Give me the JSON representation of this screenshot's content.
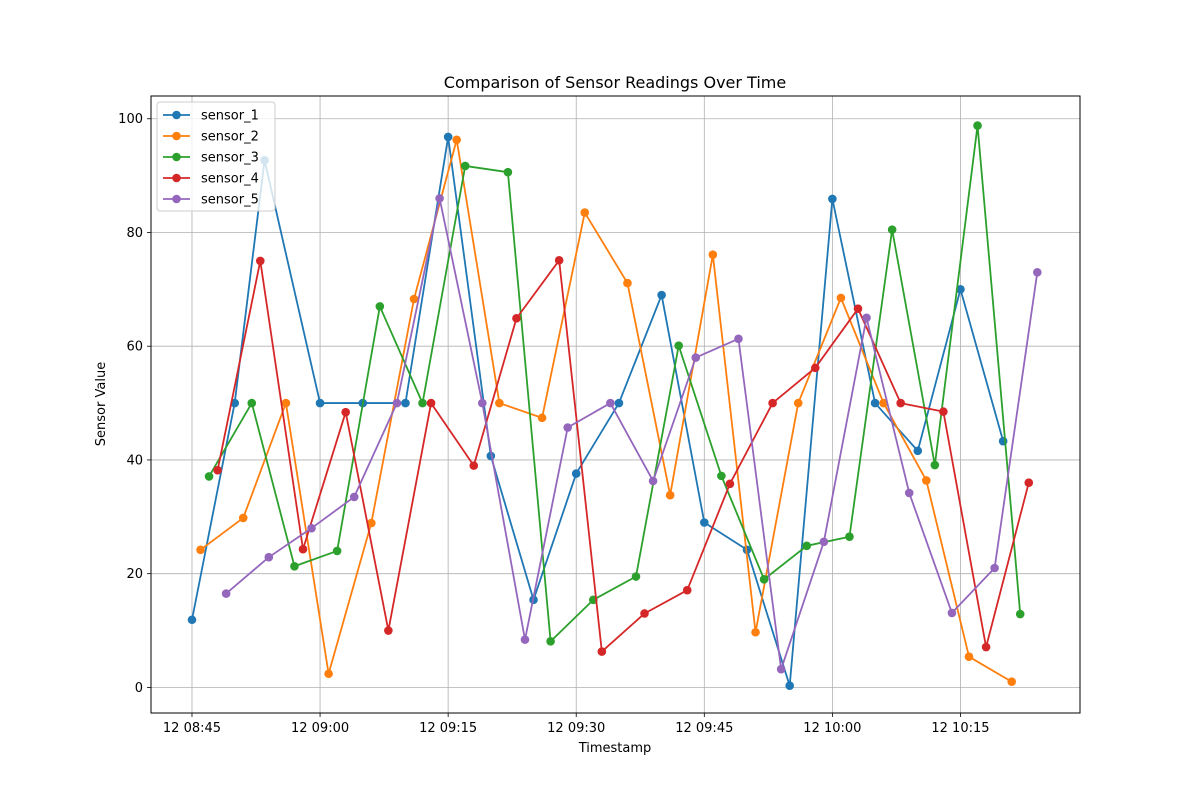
{
  "colors": {
    "sensor_1": "#1f77b4",
    "sensor_2": "#ff7f0e",
    "sensor_3": "#2ca02c",
    "sensor_4": "#d62728",
    "sensor_5": "#9467bd",
    "grid": "#b0b0b0",
    "axes": "#000000"
  },
  "chart_data": {
    "type": "line",
    "title": "Comparison of Sensor Readings Over Time",
    "xlabel": "Timestamp",
    "ylabel": "Sensor Value",
    "x_ticks": [
      "12 08:45",
      "12 09:00",
      "12 09:15",
      "12 09:30",
      "12 09:45",
      "12 10:00",
      "12 10:15"
    ],
    "x_tick_minutes": [
      0,
      15,
      30,
      45,
      60,
      75,
      90
    ],
    "y_ticks": [
      0,
      20,
      40,
      60,
      80,
      100
    ],
    "xlim": [
      -4.8,
      104
    ],
    "ylim": [
      -4.5,
      104
    ],
    "grid": true,
    "legend_position": "top-left",
    "x_unit": "minutes after 12 08:45",
    "series": [
      {
        "name": "sensor_1",
        "x": [
          0,
          5,
          8.5,
          15,
          20,
          25,
          30,
          35,
          40,
          45,
          50,
          55,
          60,
          65,
          70,
          75,
          80,
          85,
          90,
          95
        ],
        "y": [
          11.9,
          50,
          92.7,
          50,
          50,
          50,
          96.8,
          40.7,
          15.4,
          37.6,
          50,
          69,
          29,
          24.2,
          0.3,
          85.9,
          50,
          41.6,
          70,
          43.3
        ]
      },
      {
        "name": "sensor_2",
        "x": [
          1,
          6,
          11,
          16,
          21,
          26,
          31,
          36,
          41,
          46,
          51,
          56,
          61,
          66,
          71,
          76,
          81,
          86,
          91,
          96
        ],
        "y": [
          24.2,
          29.8,
          50,
          2.4,
          28.9,
          68.3,
          96.3,
          50,
          47.4,
          83.5,
          71.1,
          33.8,
          76.1,
          9.7,
          50,
          68.5,
          50,
          36.4,
          5.4,
          1
        ]
      },
      {
        "name": "sensor_3",
        "x": [
          2,
          7,
          12,
          17,
          22,
          27,
          32,
          37,
          42,
          47,
          52,
          57,
          62,
          67,
          72,
          77,
          82,
          87,
          92,
          97
        ],
        "y": [
          37.1,
          50,
          21.3,
          24,
          67,
          50,
          91.7,
          90.6,
          8.1,
          15.4,
          19.5,
          60.1,
          37.2,
          19,
          24.9,
          26.5,
          80.5,
          39.1,
          98.8,
          12.9
        ]
      },
      {
        "name": "sensor_4",
        "x": [
          3,
          8,
          13,
          18,
          23,
          28,
          33,
          38,
          43,
          48,
          53,
          58,
          63,
          68,
          73,
          78,
          83,
          88,
          93,
          98
        ],
        "y": [
          38.2,
          75,
          24.3,
          48.4,
          10,
          50,
          39,
          64.9,
          75.1,
          6.3,
          13,
          17.1,
          35.8,
          50,
          56.2,
          66.6,
          50,
          48.5,
          7.1,
          36
        ]
      },
      {
        "name": "sensor_5",
        "x": [
          4,
          9,
          14,
          19,
          24,
          29,
          34,
          39,
          44,
          49,
          54,
          59,
          64,
          69,
          74,
          79,
          84,
          89,
          94,
          99
        ],
        "y": [
          16.5,
          22.9,
          28,
          33.5,
          50,
          86,
          50,
          8.4,
          45.7,
          50,
          36.3,
          58,
          61.3,
          3.2,
          25.6,
          65,
          34.2,
          13.1,
          21,
          73
        ]
      }
    ]
  }
}
